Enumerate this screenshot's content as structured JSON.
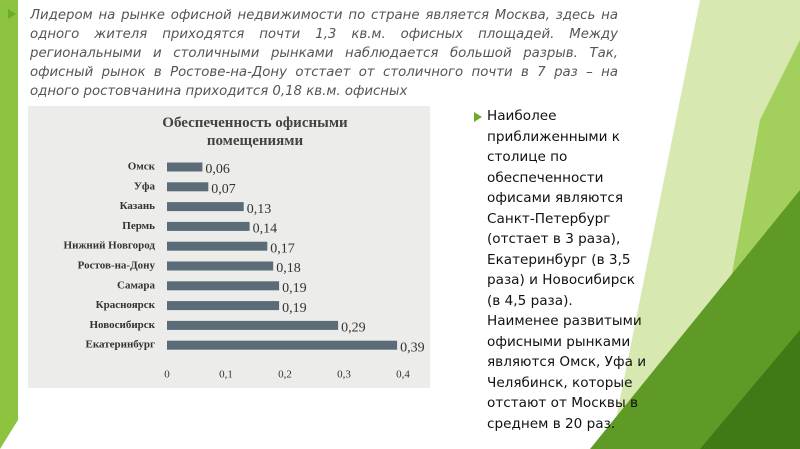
{
  "slide": {
    "intro": "Лидером на рынке офисной недвижимости по стране является Москва, здесь на одного жителя приходятся почти 1,3 кв.м. офисных площадей. Между региональными и столичными рынками наблюдается большой разрыв. Так, офисный рынок в Ростове-на-Дону отстает от столичного почти в 7 раз – на одного ростовчанина приходится 0,18 кв.м. офисных",
    "side_text": "Наиболее приближенными к столице по обеспеченности офисами являются Санкт-Петербург (отстает в 3 раза), Екатеринбург (в 3,5 раза) и Новосибирск (в 4,5 раза). Наименее развитыми офисными рынками являются Омск, Уфа и Челябинск, которые отстают от Москвы в среднем в 20 раз."
  },
  "chart_data": {
    "type": "hbar",
    "title": "Обеспеченность офисными помещениями",
    "categories": [
      "Омск",
      "Уфа",
      "Казань",
      "Пермь",
      "Нижний Новгород",
      "Ростов-на-Дону",
      "Самара",
      "Красноярск",
      "Новосибирск",
      "Екатеринбург"
    ],
    "values": [
      0.06,
      0.07,
      0.13,
      0.14,
      0.17,
      0.18,
      0.19,
      0.19,
      0.29,
      0.39
    ],
    "value_labels": [
      "0,06",
      "0,07",
      "0,13",
      "0,14",
      "0,17",
      "0,18",
      "0,19",
      "0,19",
      "0,29",
      "0,39"
    ],
    "color": "#5b6b78",
    "xlim": [
      0,
      0.4
    ],
    "xticks": [
      0,
      {
        "value": 0.1,
        "label": "0,1"
      },
      {
        "value": 0.2,
        "label": "0,2"
      },
      {
        "value": 0.3,
        "label": "0,3"
      },
      {
        "value": 0.4,
        "label": "0,4"
      }
    ]
  }
}
